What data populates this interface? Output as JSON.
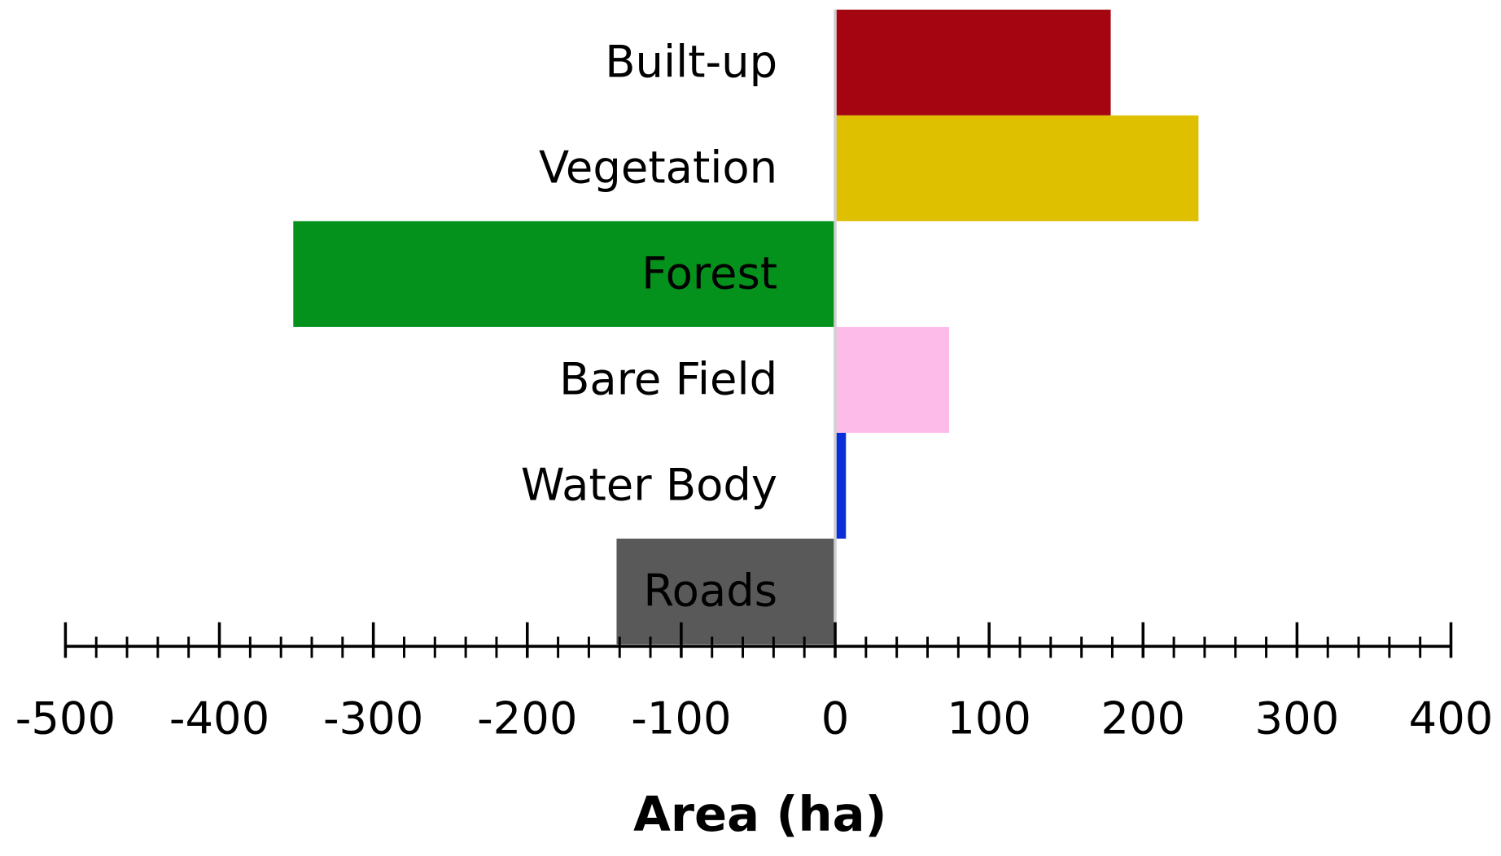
{
  "chart_data": {
    "type": "barh",
    "categories": [
      "Built-up",
      "Vegetation",
      "Forest",
      "Bare Field",
      "Water Body",
      "Roads"
    ],
    "values": [
      179,
      236,
      -352,
      74,
      7,
      -142
    ],
    "colors": [
      "#a50510",
      "#dfc000",
      "#05921c",
      "#fdbbe9",
      "#0a2fd8",
      "#595959"
    ],
    "xlim": [
      -500,
      400
    ],
    "xticks": [
      -500,
      -400,
      -300,
      -200,
      -100,
      0,
      100,
      200,
      300,
      400
    ],
    "xlabel": "Area (ha)"
  }
}
